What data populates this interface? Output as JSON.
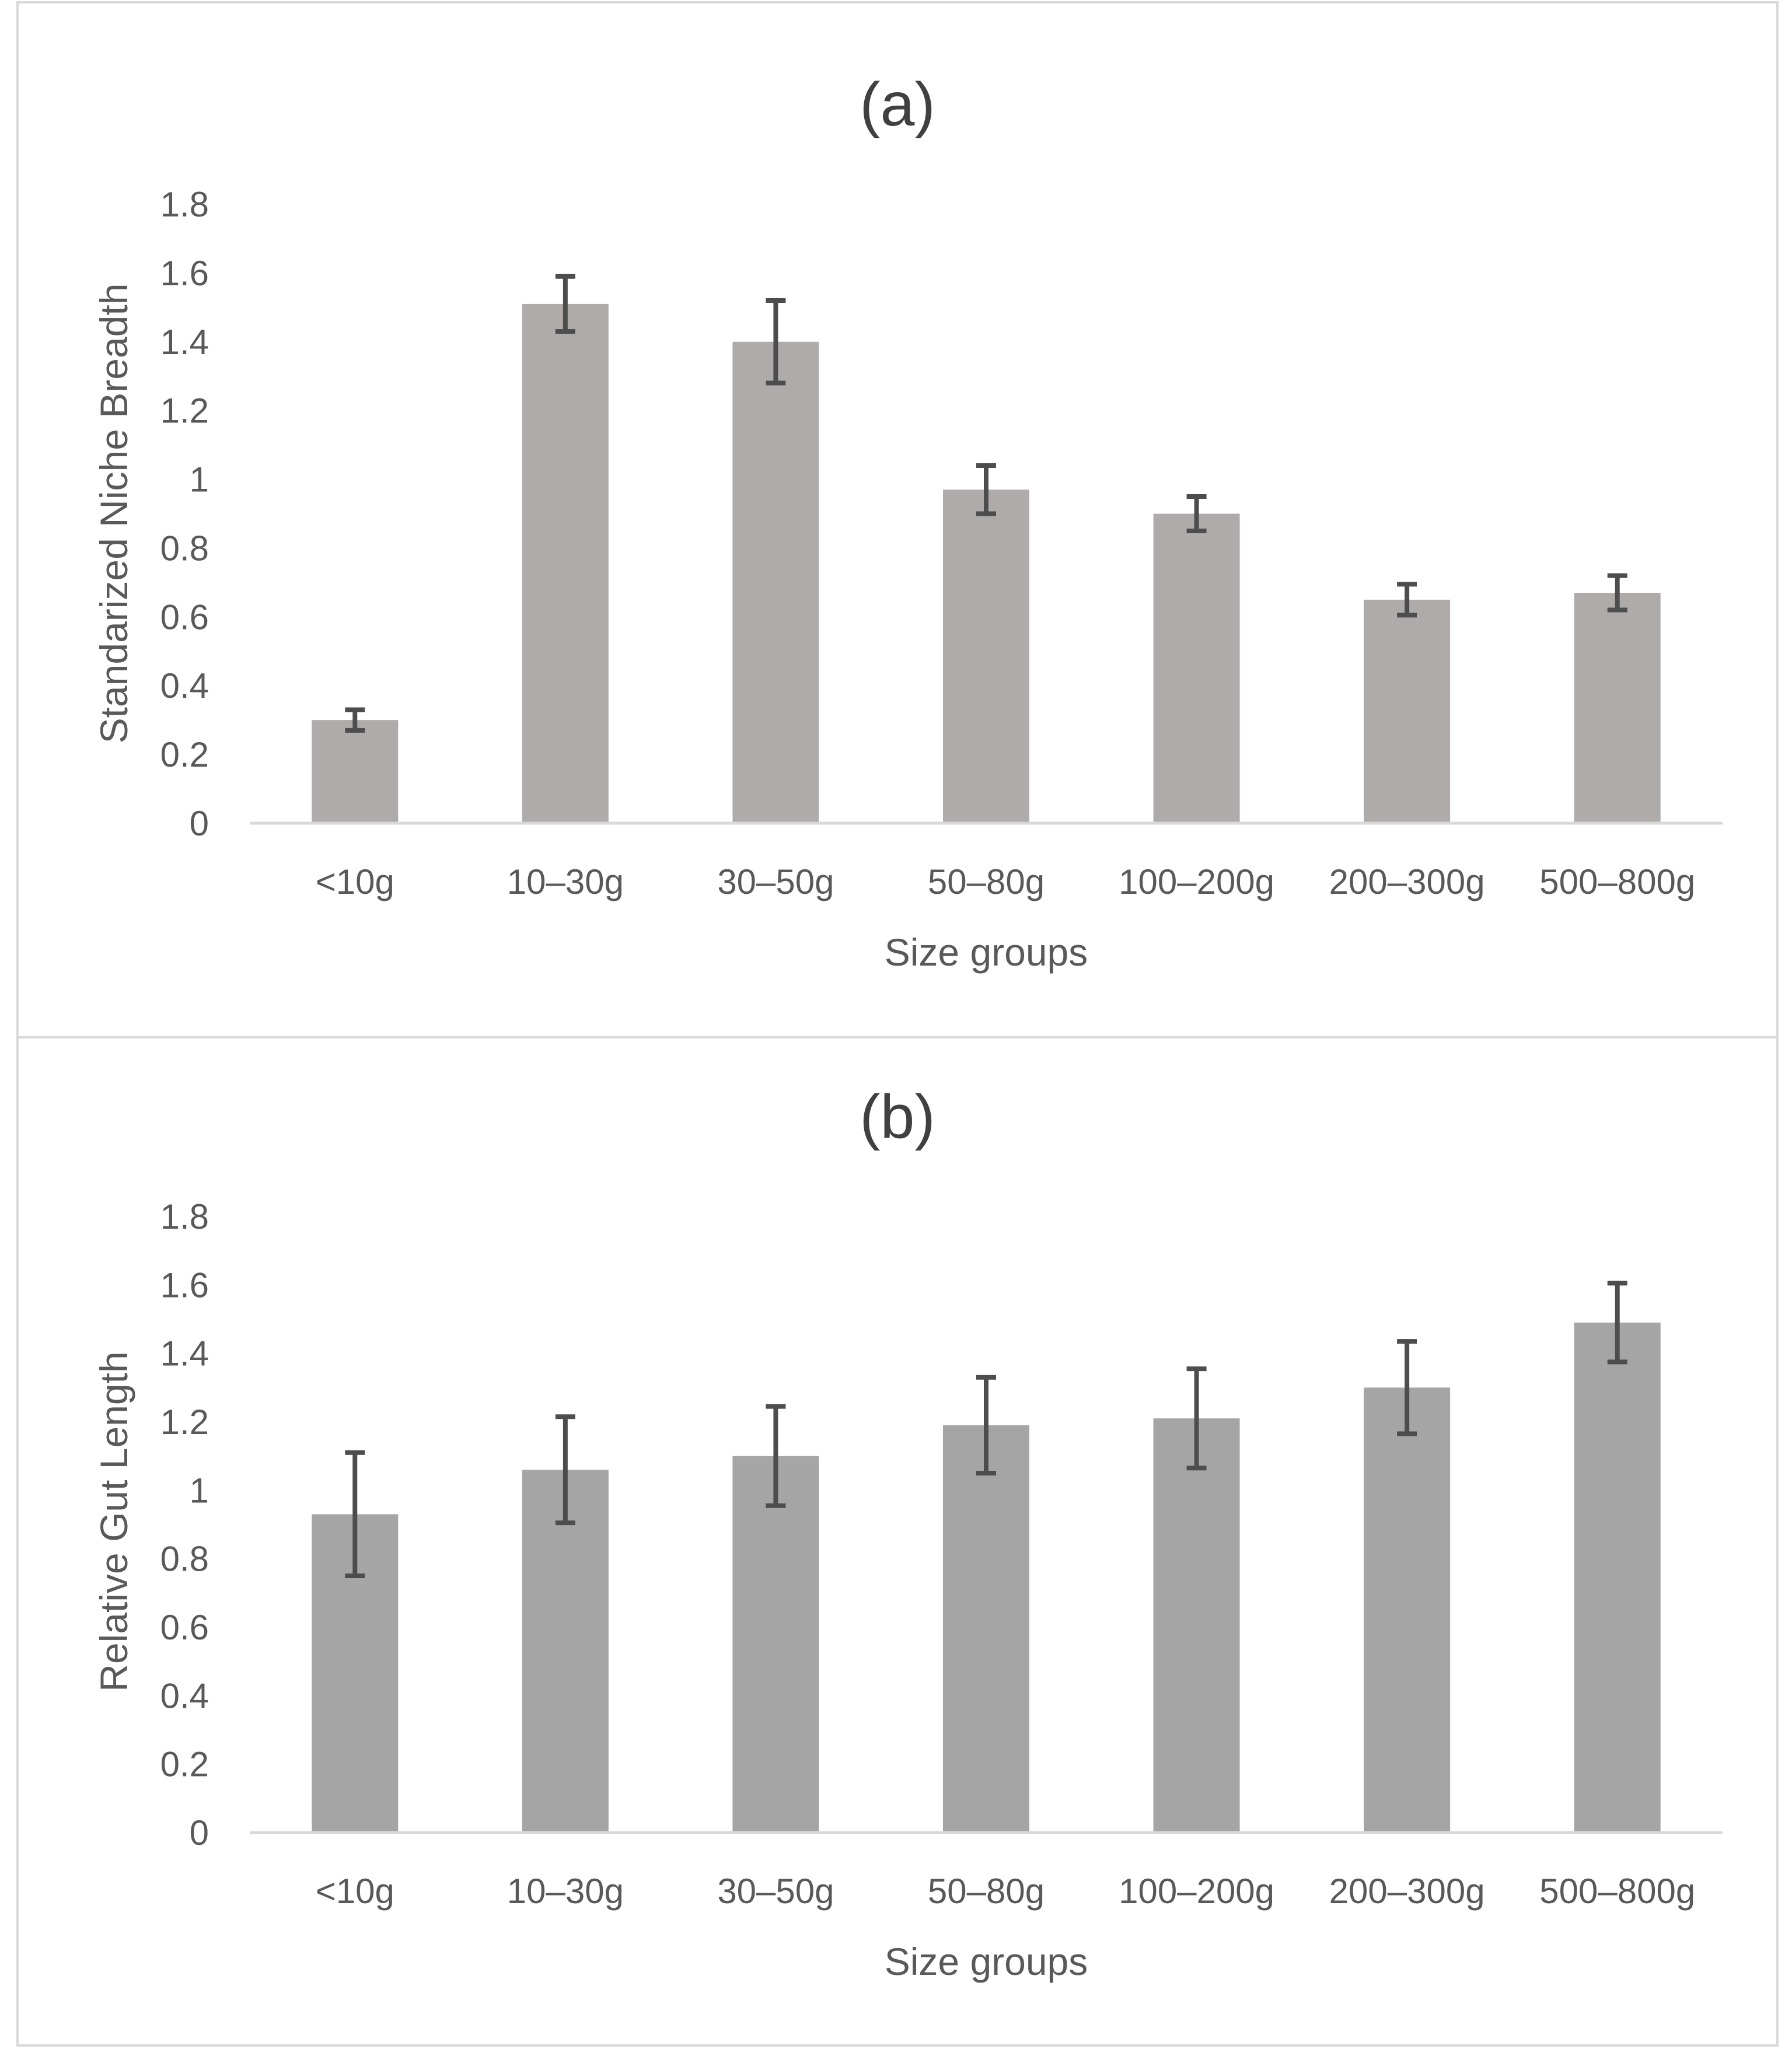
{
  "chart_data": [
    {
      "type": "bar",
      "title": "(a)",
      "xlabel": "Size groups",
      "ylabel": "Standarized Niche Breadth",
      "ylim": [
        0,
        1.8
      ],
      "yticks": [
        "0",
        "0.2",
        "0.4",
        "0.6",
        "0.8",
        "1",
        "1.2",
        "1.4",
        "1.6",
        "1.8"
      ],
      "categories": [
        "<10g",
        "10–30g",
        "30–50g",
        "50–80g",
        "100–200g",
        "200–300g",
        "500–800g"
      ],
      "values": [
        0.3,
        1.51,
        1.4,
        0.97,
        0.9,
        0.65,
        0.67
      ],
      "errors": [
        0.03,
        0.08,
        0.12,
        0.07,
        0.05,
        0.045,
        0.05
      ],
      "bar_color": "#afabab",
      "error_color": "#4d4d4d"
    },
    {
      "type": "bar",
      "title": "(b)",
      "xlabel": "Size groups",
      "ylabel": "Relative Gut Length",
      "ylim": [
        0,
        1.8
      ],
      "yticks": [
        "0",
        "0.2",
        "0.4",
        "0.6",
        "0.8",
        "1",
        "1.2",
        "1.4",
        "1.6",
        "1.8"
      ],
      "categories": [
        "<10g",
        "10–30g",
        "30–50g",
        "50–80g",
        "100–200g",
        "200–300g",
        "500–800g"
      ],
      "values": [
        0.93,
        1.06,
        1.1,
        1.19,
        1.21,
        1.3,
        1.49
      ],
      "errors": [
        0.18,
        0.155,
        0.145,
        0.14,
        0.145,
        0.135,
        0.115
      ],
      "bar_color": "#a5a5a5",
      "error_color": "#4d4d4d"
    }
  ]
}
